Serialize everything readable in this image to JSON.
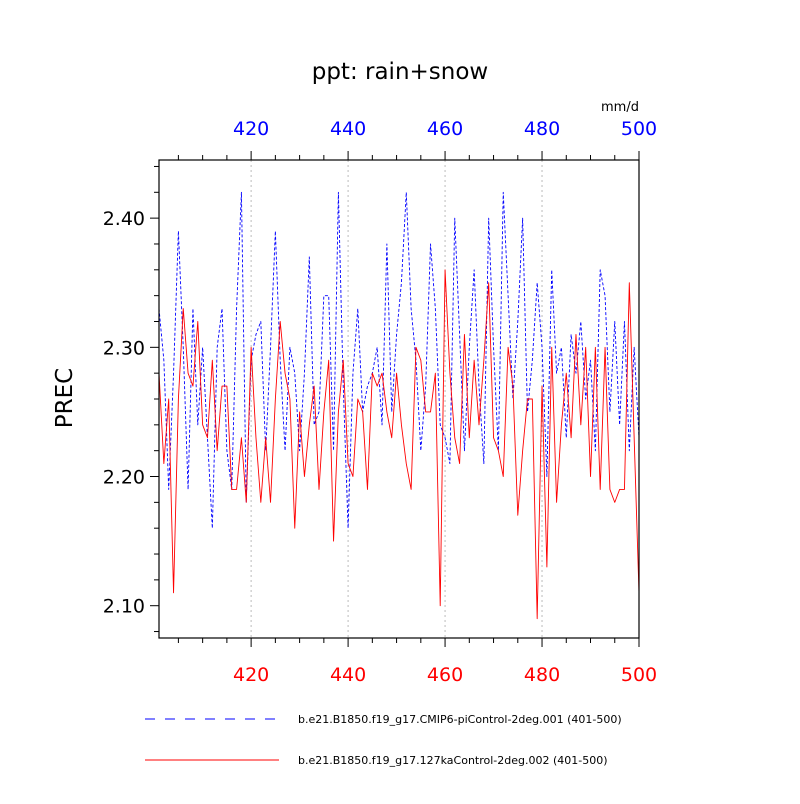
{
  "chart_data": {
    "type": "line",
    "title": "ppt: rain+snow",
    "ylabel": "PREC",
    "units_label": "mm/d",
    "xlim": [
      401,
      500
    ],
    "ylim": [
      2.075,
      2.445
    ],
    "xticks": [
      420,
      440,
      460,
      480,
      500
    ],
    "yticks": [
      2.1,
      2.2,
      2.3,
      2.4
    ],
    "ytick_labels": [
      "2.10",
      "2.20",
      "2.30",
      "2.40"
    ],
    "bottom_axis_color": "#ff0000",
    "top_axis_color": "#0000ff",
    "grid_x": true,
    "legend_position": "bottom",
    "x": [
      401,
      402,
      403,
      404,
      405,
      406,
      407,
      408,
      409,
      410,
      411,
      412,
      413,
      414,
      415,
      416,
      417,
      418,
      419,
      420,
      421,
      422,
      423,
      424,
      425,
      426,
      427,
      428,
      429,
      430,
      431,
      432,
      433,
      434,
      435,
      436,
      437,
      438,
      439,
      440,
      441,
      442,
      443,
      444,
      445,
      446,
      447,
      448,
      449,
      450,
      451,
      452,
      453,
      454,
      455,
      456,
      457,
      458,
      459,
      460,
      461,
      462,
      463,
      464,
      465,
      466,
      467,
      468,
      469,
      470,
      471,
      472,
      473,
      474,
      475,
      476,
      477,
      478,
      479,
      480,
      481,
      482,
      483,
      484,
      485,
      486,
      487,
      488,
      489,
      490,
      491,
      492,
      493,
      494,
      495,
      496,
      497,
      498,
      499,
      500
    ],
    "series": [
      {
        "name": "b.e21.B1850.f19_g17.CMIP6-piControl-2deg.001 (401-500)",
        "color": "#0000ff",
        "dash": "dashed",
        "values": [
          2.33,
          2.29,
          2.19,
          2.28,
          2.39,
          2.3,
          2.19,
          2.33,
          2.24,
          2.3,
          2.23,
          2.16,
          2.3,
          2.33,
          2.22,
          2.19,
          2.33,
          2.42,
          2.18,
          2.29,
          2.31,
          2.32,
          2.22,
          2.3,
          2.39,
          2.29,
          2.22,
          2.3,
          2.28,
          2.22,
          2.28,
          2.37,
          2.24,
          2.25,
          2.34,
          2.34,
          2.22,
          2.42,
          2.27,
          2.16,
          2.28,
          2.33,
          2.25,
          2.27,
          2.28,
          2.3,
          2.24,
          2.38,
          2.25,
          2.31,
          2.35,
          2.42,
          2.33,
          2.29,
          2.22,
          2.27,
          2.38,
          2.33,
          2.24,
          2.23,
          2.21,
          2.4,
          2.31,
          2.22,
          2.3,
          2.36,
          2.27,
          2.21,
          2.4,
          2.3,
          2.22,
          2.42,
          2.34,
          2.26,
          2.32,
          2.4,
          2.25,
          2.29,
          2.35,
          2.3,
          2.2,
          2.36,
          2.28,
          2.3,
          2.23,
          2.31,
          2.28,
          2.32,
          2.26,
          2.29,
          2.22,
          2.36,
          2.34,
          2.25,
          2.32,
          2.24,
          2.32,
          2.22,
          2.3,
          2.23
        ]
      },
      {
        "name": "b.e21.B1850.f19_g17.127kaControl-2deg.002 (401-500)",
        "color": "#ff0000",
        "dash": "solid",
        "values": [
          2.28,
          2.21,
          2.26,
          2.11,
          2.26,
          2.33,
          2.28,
          2.27,
          2.32,
          2.24,
          2.23,
          2.29,
          2.22,
          2.27,
          2.27,
          2.19,
          2.19,
          2.23,
          2.18,
          2.3,
          2.23,
          2.18,
          2.23,
          2.18,
          2.26,
          2.32,
          2.28,
          2.26,
          2.16,
          2.25,
          2.2,
          2.24,
          2.27,
          2.19,
          2.25,
          2.29,
          2.15,
          2.25,
          2.29,
          2.21,
          2.2,
          2.26,
          2.25,
          2.19,
          2.28,
          2.27,
          2.28,
          2.25,
          2.23,
          2.28,
          2.24,
          2.21,
          2.19,
          2.3,
          2.29,
          2.25,
          2.25,
          2.28,
          2.1,
          2.36,
          2.28,
          2.23,
          2.21,
          2.31,
          2.23,
          2.29,
          2.24,
          2.29,
          2.35,
          2.23,
          2.22,
          2.2,
          2.3,
          2.27,
          2.17,
          2.22,
          2.26,
          2.26,
          2.09,
          2.27,
          2.13,
          2.3,
          2.18,
          2.24,
          2.28,
          2.23,
          2.31,
          2.24,
          2.3,
          2.2,
          2.3,
          2.19,
          2.3,
          2.19,
          2.18,
          2.19,
          2.19,
          2.35,
          2.23,
          2.11
        ]
      }
    ]
  }
}
